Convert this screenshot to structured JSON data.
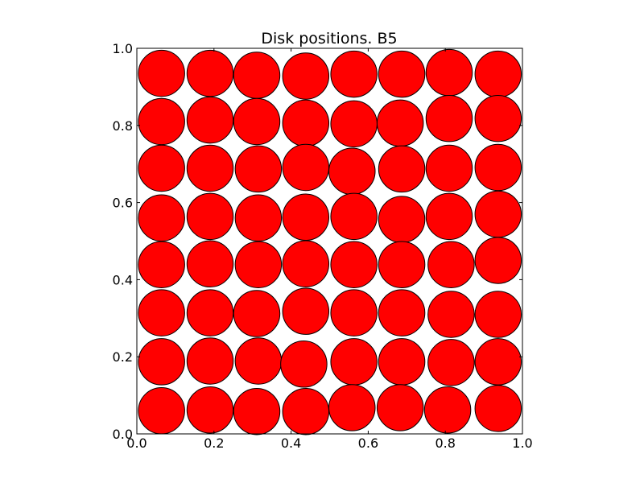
{
  "chart_data": {
    "type": "scatter",
    "title": "Disk positions. B5",
    "xlabel": "",
    "ylabel": "",
    "xlim": [
      0.0,
      1.0
    ],
    "ylim": [
      0.0,
      1.0
    ],
    "xticks": [
      "0.0",
      "0.2",
      "0.4",
      "0.6",
      "0.8",
      "1.0"
    ],
    "yticks": [
      "0.0",
      "0.2",
      "0.4",
      "0.6",
      "0.8",
      "1.0"
    ],
    "grid": false,
    "disk_radius": 0.06,
    "marker_color": "#ff0000",
    "edge_color": "#000000",
    "disks": [
      {
        "x": 0.064,
        "y": 0.935
      },
      {
        "x": 0.19,
        "y": 0.935
      },
      {
        "x": 0.311,
        "y": 0.93
      },
      {
        "x": 0.438,
        "y": 0.928
      },
      {
        "x": 0.563,
        "y": 0.933
      },
      {
        "x": 0.687,
        "y": 0.933
      },
      {
        "x": 0.81,
        "y": 0.937
      },
      {
        "x": 0.937,
        "y": 0.933
      },
      {
        "x": 0.064,
        "y": 0.81
      },
      {
        "x": 0.19,
        "y": 0.814
      },
      {
        "x": 0.311,
        "y": 0.81
      },
      {
        "x": 0.438,
        "y": 0.806
      },
      {
        "x": 0.563,
        "y": 0.804
      },
      {
        "x": 0.683,
        "y": 0.806
      },
      {
        "x": 0.81,
        "y": 0.818
      },
      {
        "x": 0.937,
        "y": 0.818
      },
      {
        "x": 0.064,
        "y": 0.689
      },
      {
        "x": 0.19,
        "y": 0.689
      },
      {
        "x": 0.315,
        "y": 0.687
      },
      {
        "x": 0.438,
        "y": 0.691
      },
      {
        "x": 0.558,
        "y": 0.681
      },
      {
        "x": 0.687,
        "y": 0.687
      },
      {
        "x": 0.81,
        "y": 0.689
      },
      {
        "x": 0.937,
        "y": 0.691
      },
      {
        "x": 0.064,
        "y": 0.56
      },
      {
        "x": 0.19,
        "y": 0.564
      },
      {
        "x": 0.315,
        "y": 0.56
      },
      {
        "x": 0.438,
        "y": 0.562
      },
      {
        "x": 0.563,
        "y": 0.564
      },
      {
        "x": 0.687,
        "y": 0.556
      },
      {
        "x": 0.81,
        "y": 0.564
      },
      {
        "x": 0.937,
        "y": 0.57
      },
      {
        "x": 0.064,
        "y": 0.439
      },
      {
        "x": 0.19,
        "y": 0.441
      },
      {
        "x": 0.315,
        "y": 0.439
      },
      {
        "x": 0.438,
        "y": 0.441
      },
      {
        "x": 0.563,
        "y": 0.439
      },
      {
        "x": 0.687,
        "y": 0.439
      },
      {
        "x": 0.815,
        "y": 0.439
      },
      {
        "x": 0.937,
        "y": 0.45
      },
      {
        "x": 0.064,
        "y": 0.314
      },
      {
        "x": 0.19,
        "y": 0.314
      },
      {
        "x": 0.311,
        "y": 0.312
      },
      {
        "x": 0.438,
        "y": 0.318
      },
      {
        "x": 0.563,
        "y": 0.314
      },
      {
        "x": 0.687,
        "y": 0.314
      },
      {
        "x": 0.815,
        "y": 0.31
      },
      {
        "x": 0.937,
        "y": 0.31
      },
      {
        "x": 0.064,
        "y": 0.187
      },
      {
        "x": 0.19,
        "y": 0.189
      },
      {
        "x": 0.315,
        "y": 0.189
      },
      {
        "x": 0.433,
        "y": 0.181
      },
      {
        "x": 0.563,
        "y": 0.187
      },
      {
        "x": 0.687,
        "y": 0.187
      },
      {
        "x": 0.815,
        "y": 0.185
      },
      {
        "x": 0.937,
        "y": 0.187
      },
      {
        "x": 0.064,
        "y": 0.06
      },
      {
        "x": 0.19,
        "y": 0.062
      },
      {
        "x": 0.311,
        "y": 0.058
      },
      {
        "x": 0.438,
        "y": 0.058
      },
      {
        "x": 0.558,
        "y": 0.068
      },
      {
        "x": 0.683,
        "y": 0.068
      },
      {
        "x": 0.806,
        "y": 0.062
      },
      {
        "x": 0.937,
        "y": 0.066
      }
    ]
  }
}
